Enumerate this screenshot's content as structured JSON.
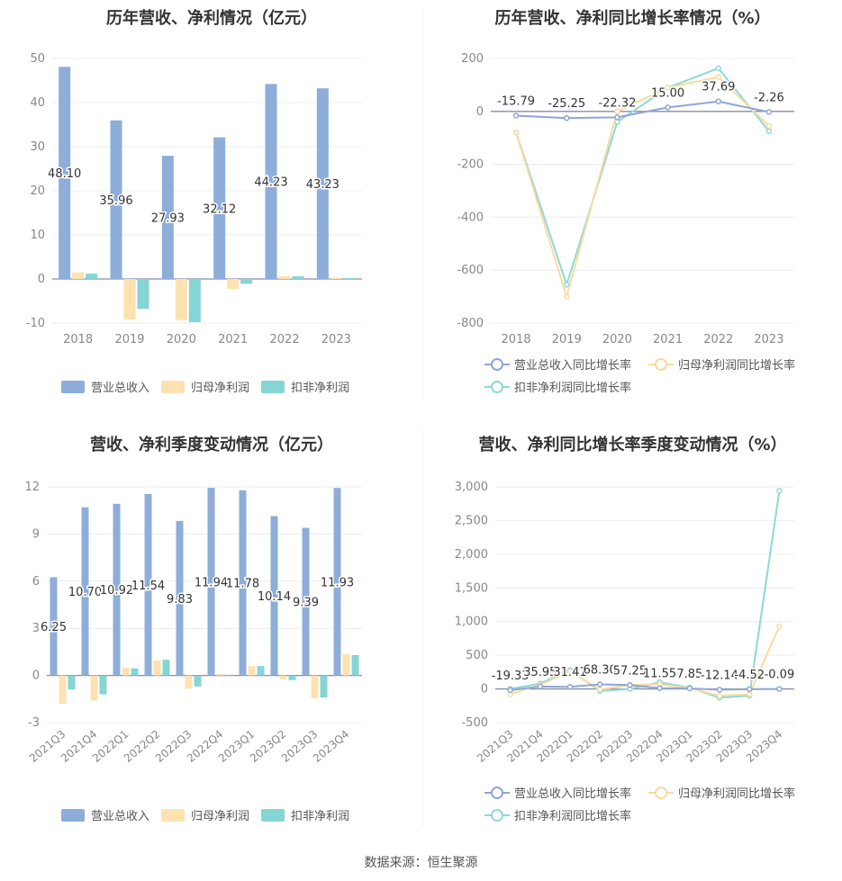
{
  "footer": {
    "source": "数据来源：恒生聚源"
  },
  "colors": {
    "revenue": "#8eadd9",
    "net_profit": "#fde2b0",
    "deducted": "#85d5d5",
    "revenue_line": "#8ea6d6",
    "net_line": "#f9dba0",
    "deducted_line": "#8fd8d8"
  },
  "chart_data": [
    {
      "id": "annual_bar",
      "type": "bar",
      "title": "历年营收、净利情况（亿元）",
      "categories": [
        "2018",
        "2019",
        "2020",
        "2021",
        "2022",
        "2023"
      ],
      "ylim": [
        -10,
        50
      ],
      "yticks": [
        "-10",
        "0",
        "10",
        "20",
        "30",
        "40",
        "50"
      ],
      "series": [
        {
          "name": "营业总收入",
          "values": [
            48.1,
            35.96,
            27.93,
            32.12,
            44.23,
            43.23
          ],
          "labels": [
            "48.10",
            "35.96",
            "27.93",
            "32.12",
            "44.23",
            "43.23"
          ]
        },
        {
          "name": "归母净利润",
          "values": [
            1.5,
            -9.2,
            -9.3,
            -2.3,
            0.6,
            0.3
          ]
        },
        {
          "name": "扣非净利润",
          "values": [
            1.2,
            -6.8,
            -9.8,
            -1.1,
            0.6,
            0.2
          ]
        }
      ]
    },
    {
      "id": "annual_line",
      "type": "line",
      "title": "历年营收、净利同比增长率情况（%）",
      "categories": [
        "2018",
        "2019",
        "2020",
        "2021",
        "2022",
        "2023"
      ],
      "ylim": [
        -800,
        200
      ],
      "yticks": [
        "-800",
        "-600",
        "-400",
        "-200",
        "0",
        "200"
      ],
      "series": [
        {
          "name": "营业总收入同比增长率",
          "values": [
            -15.79,
            -25.25,
            -22.32,
            15.0,
            37.69,
            -2.26
          ],
          "labels": [
            "-15.79",
            "-25.25",
            "-22.32",
            "15.00",
            "37.69",
            "-2.26"
          ]
        },
        {
          "name": "归母净利润同比增长率",
          "values": [
            -80,
            -700,
            0,
            90,
            130,
            -55
          ]
        },
        {
          "name": "扣非净利润同比增长率",
          "values": [
            -80,
            -655,
            -40,
            90,
            163,
            -75
          ]
        }
      ]
    },
    {
      "id": "quarterly_bar",
      "type": "bar",
      "title": "营收、净利季度变动情况（亿元）",
      "categories": [
        "2021Q3",
        "2021Q4",
        "2022Q1",
        "2022Q2",
        "2022Q3",
        "2022Q4",
        "2023Q1",
        "2023Q2",
        "2023Q3",
        "2023Q4"
      ],
      "ylim": [
        -3,
        12
      ],
      "yticks": [
        "-3",
        "0",
        "3",
        "6",
        "9",
        "12"
      ],
      "series": [
        {
          "name": "营业总收入",
          "values": [
            6.25,
            10.7,
            10.92,
            11.54,
            9.83,
            11.94,
            11.78,
            10.14,
            9.39,
            11.93
          ],
          "labels": [
            "6.25",
            "10.70",
            "10.92",
            "11.54",
            "9.83",
            "11.94",
            "11.78",
            "10.14",
            "9.39",
            "11.93"
          ]
        },
        {
          "name": "归母净利润",
          "values": [
            -1.8,
            -1.6,
            0.5,
            0.95,
            -0.85,
            0.1,
            0.6,
            -0.25,
            -1.45,
            1.35
          ]
        },
        {
          "name": "扣非净利润",
          "values": [
            -0.9,
            -1.2,
            0.45,
            1.0,
            -0.7,
            0.05,
            0.6,
            -0.3,
            -1.4,
            1.3
          ]
        }
      ]
    },
    {
      "id": "quarterly_line",
      "type": "line",
      "title": "营收、净利同比增长率季度变动情况（%）",
      "categories": [
        "2021Q3",
        "2021Q4",
        "2022Q1",
        "2022Q2",
        "2022Q3",
        "2022Q4",
        "2023Q1",
        "2023Q2",
        "2023Q3",
        "2023Q4"
      ],
      "ylim": [
        -500,
        3000
      ],
      "yticks": [
        "-500",
        "0",
        "500",
        "1,000",
        "1,500",
        "2,000",
        "2,500",
        "3,000"
      ],
      "series": [
        {
          "name": "营业总收入同比增长率",
          "values": [
            -19.33,
            35.95,
            31.41,
            68.3,
            57.25,
            11.55,
            7.85,
            -12.14,
            -4.52,
            -0.09
          ],
          "labels": [
            "-19.33",
            "35.95",
            "31.41",
            "68.30",
            "57.25",
            "11.55",
            "7.85",
            "-12.14",
            "-4.52",
            "-0.09"
          ]
        },
        {
          "name": "归母净利润同比增长率",
          "values": [
            -80,
            60,
            260,
            -10,
            60,
            70,
            10,
            -100,
            -80,
            930
          ]
        },
        {
          "name": "扣非净利润同比增长率",
          "values": [
            0,
            80,
            280,
            -30,
            0,
            100,
            20,
            -130,
            -100,
            2940
          ]
        }
      ]
    }
  ]
}
